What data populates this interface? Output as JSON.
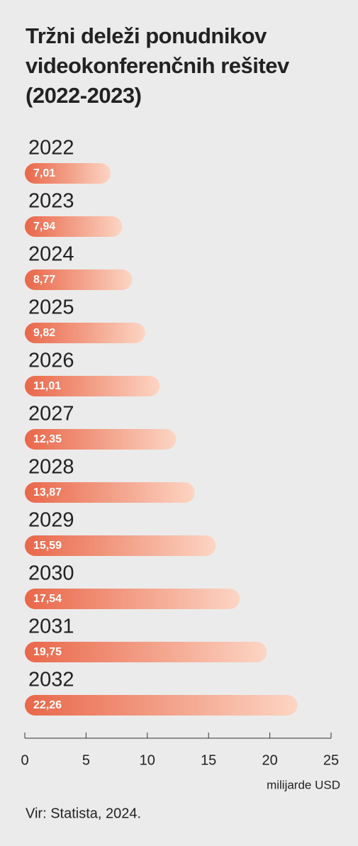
{
  "chart_data": {
    "type": "bar",
    "orientation": "horizontal",
    "title": "Tržni deleži ponudnikov videokonferenčnih rešitev (2022-2023)",
    "categories": [
      "2022",
      "2023",
      "2024",
      "2025",
      "2026",
      "2027",
      "2028",
      "2029",
      "2030",
      "2031",
      "2032"
    ],
    "values": [
      7.01,
      7.94,
      8.77,
      9.82,
      11.01,
      12.35,
      13.87,
      15.59,
      17.54,
      19.75,
      22.26
    ],
    "value_labels": [
      "7,01",
      "7,94",
      "8,77",
      "9,82",
      "11,01",
      "12,35",
      "13,87",
      "15,59",
      "17,54",
      "19,75",
      "22,26"
    ],
    "gradient": [
      "#e9674a",
      "#fcd5c3"
    ],
    "xlim": [
      0,
      25
    ],
    "xticks": [
      0,
      5,
      10,
      15,
      20,
      25
    ],
    "x_label": "milijarde USD",
    "source": "Vir: Statista, 2024."
  }
}
